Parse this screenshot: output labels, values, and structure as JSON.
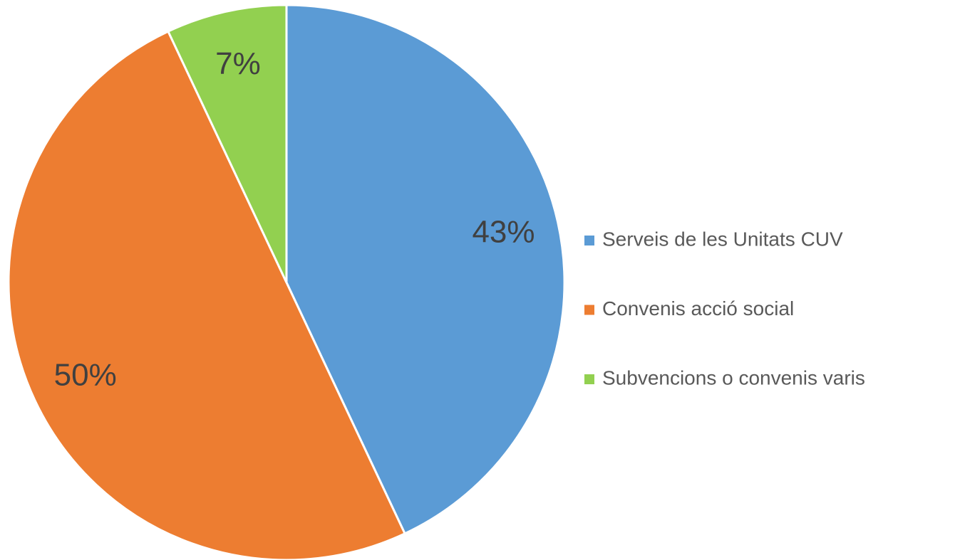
{
  "chart_data": {
    "type": "pie",
    "categories": [
      "Serveis de les Unitats CUV",
      "Convenis acció social",
      "Subvencions o convenis varis"
    ],
    "values": [
      43,
      50,
      7
    ],
    "value_labels": [
      "43%",
      "50%",
      "7%"
    ],
    "colors": [
      "#5b9bd5",
      "#ed7d31",
      "#92d050"
    ],
    "legend": "right"
  }
}
